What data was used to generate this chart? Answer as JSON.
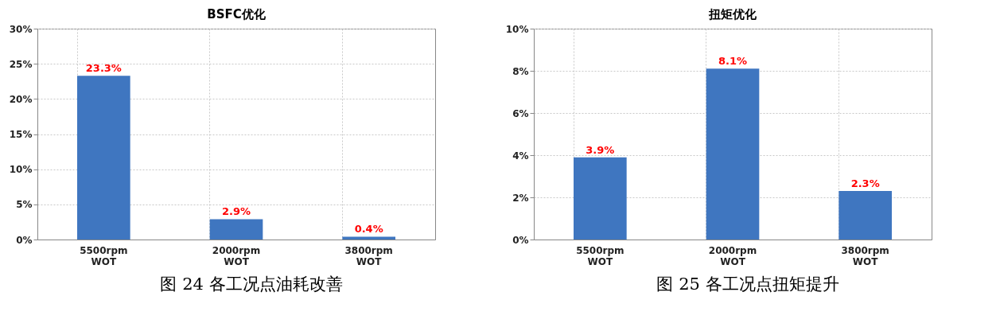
{
  "chart_data": [
    {
      "type": "bar",
      "title": "BSFC优化",
      "categories": [
        "5500rpm WOT",
        "2000rpm WOT",
        "3800rpm WOT"
      ],
      "values": [
        23.3,
        2.9,
        0.4
      ],
      "value_labels": [
        "23.3%",
        "2.9%",
        "0.4%"
      ],
      "color": "#3f76c0",
      "ylim": [
        0,
        30
      ],
      "yticks": [
        {
          "value": 0,
          "label": "0%"
        },
        {
          "value": 5,
          "label": "5%"
        },
        {
          "value": 10,
          "label": "10%"
        },
        {
          "value": 15,
          "label": "15%"
        },
        {
          "value": 20,
          "label": "20%"
        },
        {
          "value": 25,
          "label": "25%"
        },
        {
          "value": 30,
          "label": "30%"
        }
      ],
      "grid": true,
      "annotations": [
        "图 24 各工况点油耗改善"
      ]
    },
    {
      "type": "bar",
      "title": "扭矩优化",
      "categories": [
        "5500rpm WOT",
        "2000rpm WOT",
        "3800rpm WOT"
      ],
      "values": [
        3.9,
        8.1,
        2.3
      ],
      "value_labels": [
        "3.9%",
        "8.1%",
        "2.3%"
      ],
      "color": "#3f76c0",
      "ylim": [
        0,
        10
      ],
      "yticks": [
        {
          "value": 0,
          "label": "0%"
        },
        {
          "value": 2,
          "label": "2%"
        },
        {
          "value": 4,
          "label": "4%"
        },
        {
          "value": 6,
          "label": "6%"
        },
        {
          "value": 8,
          "label": "8%"
        },
        {
          "value": 10,
          "label": "10%"
        }
      ],
      "grid": true,
      "annotations": [
        "图 25 各工况点扭矩提升"
      ]
    }
  ]
}
